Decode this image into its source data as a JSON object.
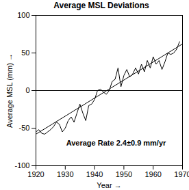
{
  "chart_data": {
    "type": "line",
    "title": "Average MSL Deviations",
    "x_label": "Year",
    "y_label": "Average MSL (mm)",
    "x": [
      1920,
      1921,
      1922,
      1923,
      1924,
      1925,
      1926,
      1927,
      1928,
      1929,
      1930,
      1931,
      1932,
      1933,
      1934,
      1935,
      1936,
      1937,
      1938,
      1939,
      1940,
      1941,
      1942,
      1943,
      1944,
      1945,
      1946,
      1947,
      1948,
      1949,
      1950,
      1951,
      1952,
      1953,
      1954,
      1955,
      1956,
      1957,
      1958,
      1959,
      1960,
      1961,
      1962,
      1963,
      1964,
      1965,
      1966,
      1967,
      1968,
      1969
    ],
    "series": [
      {
        "color": "#000000",
        "values": [
          -55,
          -52,
          -57,
          -58,
          -55,
          -52,
          -48,
          -42,
          -45,
          -55,
          -50,
          -40,
          -35,
          -42,
          -30,
          -18,
          -30,
          -40,
          -20,
          -18,
          -12,
          0,
          2,
          -2,
          -5,
          0,
          12,
          15,
          30,
          5,
          20,
          28,
          18,
          22,
          30,
          22,
          35,
          25,
          40,
          30,
          45,
          35,
          40,
          28,
          38,
          50,
          48,
          50,
          55,
          65
        ]
      },
      {
        "color": "#000000",
        "x": [
          1920,
          1970
        ],
        "values": [
          -58,
          62
        ]
      }
    ],
    "rule_y": 0,
    "annotation": "Average Rate 2.4±0.9 mm/yr",
    "xlim": [
      1920,
      1970
    ],
    "xticks": [
      1920,
      1930,
      1940,
      1950,
      1960,
      1970
    ],
    "ylim": [
      -100,
      100
    ],
    "yticks": [
      -100,
      -50,
      0,
      50,
      100
    ],
    "grid": false
  }
}
